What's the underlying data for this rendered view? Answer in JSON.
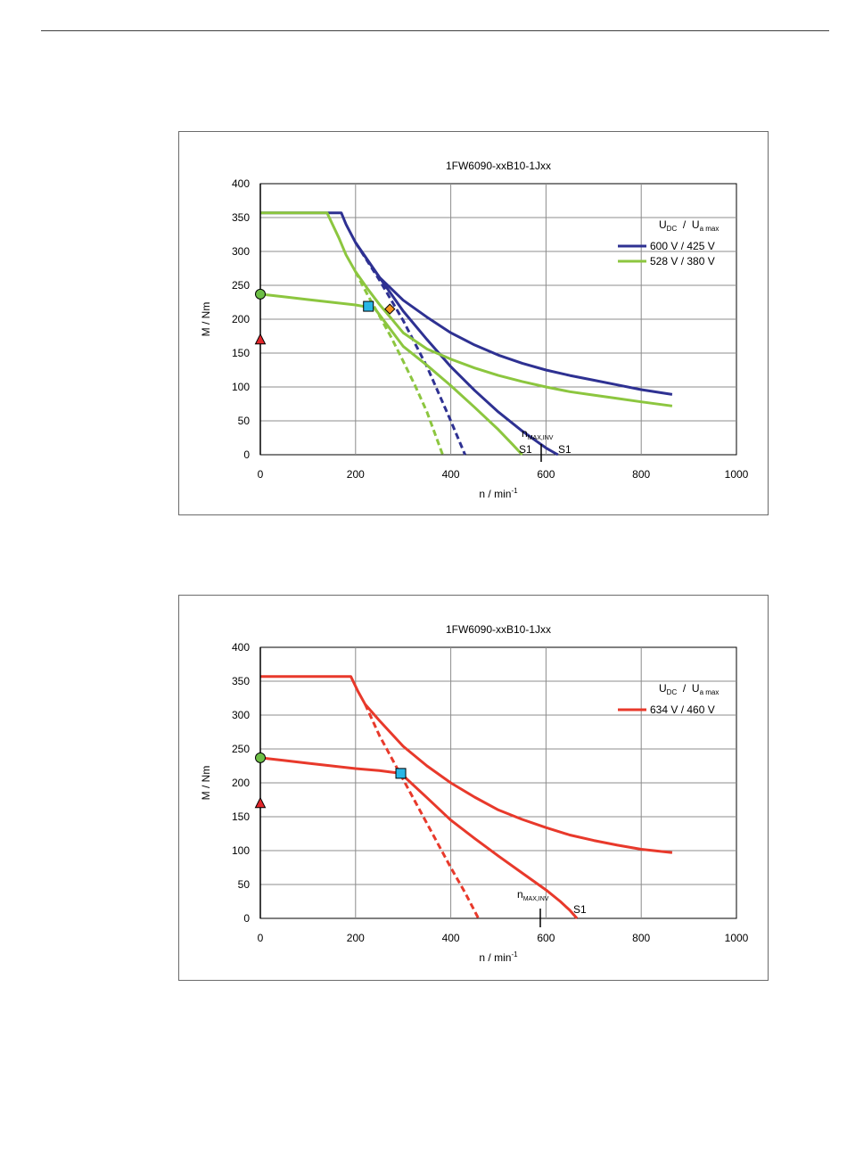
{
  "chart_data": [
    {
      "type": "line",
      "title": "1FW6090-xxB10-1Jxx",
      "xlabel": "n / min",
      "xlabel_sup": "-1",
      "ylabel": "M / Nm",
      "xlim": [
        0,
        1000
      ],
      "ylim": [
        0,
        400
      ],
      "xticks": [
        "0",
        "200",
        "400",
        "600",
        "800",
        "1000"
      ],
      "yticks": [
        "0",
        "50",
        "100",
        "150",
        "200",
        "250",
        "300",
        "350",
        "400"
      ],
      "grid": true,
      "legend": {
        "placement": "right",
        "header_main": "U",
        "header_sub": "DC",
        "header_sep": "/",
        "header_main2": "U",
        "header_sub2": "a max"
      },
      "series": [
        {
          "name": "600 V / 425 V",
          "color": "#2e3192",
          "style": "solid",
          "x": [
            0,
            170,
            180,
            200,
            250,
            300,
            350,
            400,
            450,
            500,
            550,
            600,
            650,
            700,
            750,
            800,
            865
          ],
          "y": [
            357,
            357,
            340,
            313,
            262,
            228,
            203,
            180,
            162,
            147,
            135,
            125,
            117,
            110,
            103,
            96,
            89
          ]
        },
        {
          "name": "",
          "color": "#2e3192",
          "style": "solid",
          "x": [
            200,
            250,
            300,
            350,
            400,
            450,
            500,
            550,
            580,
            600,
            615,
            625
          ],
          "y": [
            313,
            262,
            212,
            170,
            130,
            95,
            63,
            35,
            20,
            10,
            4,
            0
          ]
        },
        {
          "name": "",
          "color": "#2e3192",
          "style": "dashed",
          "x": [
            200,
            250,
            300,
            350,
            400,
            430
          ],
          "y": [
            313,
            258,
            198,
            130,
            50,
            0
          ]
        },
        {
          "name": "528 V / 380 V",
          "color": "#8cc63f",
          "style": "solid",
          "x": [
            0,
            140,
            165,
            180,
            200,
            225,
            250,
            275,
            300,
            350,
            400,
            450,
            500,
            550,
            600,
            650,
            700,
            750,
            800,
            865
          ],
          "y": [
            357,
            357,
            320,
            295,
            270,
            245,
            222,
            201,
            180,
            156,
            141,
            128,
            117,
            108,
            100,
            93,
            88,
            83,
            78,
            72
          ]
        },
        {
          "name": "",
          "color": "#8cc63f",
          "style": "solid",
          "x": [
            0,
            50,
            100,
            150,
            200,
            240,
            300,
            350,
            400,
            450,
            500,
            530,
            550
          ],
          "y": [
            237,
            233,
            229,
            225,
            221,
            216,
            160,
            132,
            102,
            70,
            37,
            15,
            0
          ]
        },
        {
          "name": "",
          "color": "#8cc63f",
          "style": "dashed",
          "x": [
            200,
            225,
            250,
            275,
            300,
            325,
            350,
            383
          ],
          "y": [
            270,
            236,
            205,
            173,
            138,
            102,
            63,
            0
          ]
        }
      ],
      "markers": [
        {
          "shape": "circle",
          "x": 0,
          "y": 237,
          "fill": "#6cbe45"
        },
        {
          "shape": "triangle",
          "x": 0,
          "y": 170,
          "fill": "#e2262b"
        },
        {
          "shape": "square",
          "x": 227,
          "y": 219,
          "fill": "#29b6e6"
        },
        {
          "shape": "diamond",
          "x": 272,
          "y": 215,
          "fill": "#f7941d"
        }
      ],
      "annotations": [
        {
          "text": "n",
          "sub": "MAX,INV"
        },
        {
          "text": "S1"
        },
        {
          "text": "S1"
        }
      ]
    },
    {
      "type": "line",
      "title": "1FW6090-xxB10-1Jxx",
      "xlabel": "n / min",
      "xlabel_sup": "-1",
      "ylabel": "M / Nm",
      "xlim": [
        0,
        1000
      ],
      "ylim": [
        0,
        400
      ],
      "xticks": [
        "0",
        "200",
        "400",
        "600",
        "800",
        "1000"
      ],
      "yticks": [
        "0",
        "50",
        "100",
        "150",
        "200",
        "250",
        "300",
        "350",
        "400"
      ],
      "grid": true,
      "legend": {
        "placement": "right",
        "header_main": "U",
        "header_sub": "DC",
        "header_sep": "/",
        "header_main2": "U",
        "header_sub2": "a max"
      },
      "series": [
        {
          "name": "634 V / 460 V",
          "color": "#e8392b",
          "style": "solid",
          "x": [
            0,
            190,
            205,
            220,
            250,
            300,
            350,
            400,
            450,
            500,
            550,
            600,
            650,
            700,
            750,
            800,
            865
          ],
          "y": [
            357,
            357,
            335,
            316,
            292,
            254,
            225,
            200,
            179,
            160,
            146,
            134,
            123,
            115,
            108,
            102,
            97
          ]
        },
        {
          "name": "",
          "color": "#e8392b",
          "style": "solid",
          "x": [
            0,
            50,
            100,
            150,
            200,
            250,
            295,
            350,
            400,
            450,
            500,
            550,
            600,
            630,
            650,
            665
          ],
          "y": [
            237,
            233,
            229,
            225,
            221,
            218,
            214,
            178,
            145,
            118,
            92,
            67,
            42,
            25,
            12,
            0
          ]
        },
        {
          "name": "",
          "color": "#e8392b",
          "style": "dashed",
          "x": [
            220,
            250,
            300,
            350,
            400,
            430,
            458
          ],
          "y": [
            316,
            270,
            205,
            140,
            75,
            38,
            0
          ]
        }
      ],
      "markers": [
        {
          "shape": "circle",
          "x": 0,
          "y": 237,
          "fill": "#6cbe45"
        },
        {
          "shape": "triangle",
          "x": 0,
          "y": 170,
          "fill": "#e2262b"
        },
        {
          "shape": "square",
          "x": 295,
          "y": 214,
          "fill": "#29b6e6"
        }
      ],
      "annotations": [
        {
          "text": "n",
          "sub": "MAX,INV"
        },
        {
          "text": "S1"
        }
      ]
    }
  ]
}
